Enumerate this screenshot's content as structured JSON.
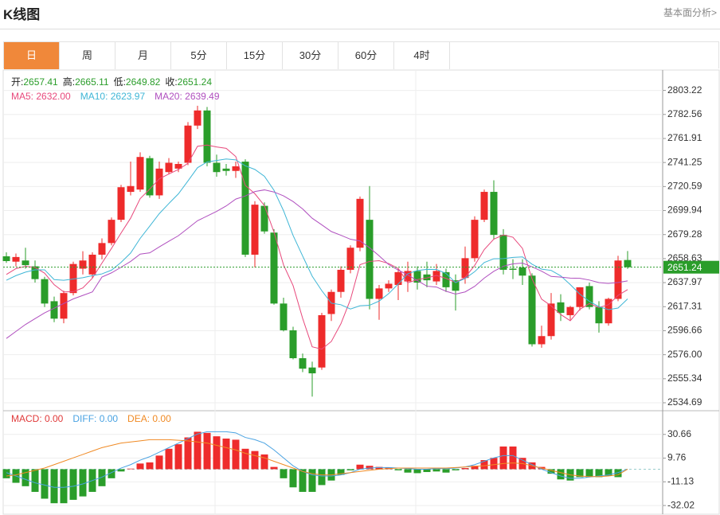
{
  "header": {
    "title": "K线图",
    "link": "基本面分析>"
  },
  "tabs": [
    "日",
    "周",
    "月",
    "5分",
    "15分",
    "30分",
    "60分",
    "4时"
  ],
  "active_tab": 0,
  "chart_data": [
    {
      "type": "candlestick",
      "up_color": "#ee2b2b",
      "down_color": "#2a9d2a",
      "grid": true,
      "info": [
        {
          "label": "开:",
          "value": "2657.41"
        },
        {
          "label": "高:",
          "value": "2665.11"
        },
        {
          "label": "低:",
          "value": "2649.82"
        },
        {
          "label": "收:",
          "value": "2651.24"
        }
      ],
      "ylim": [
        2528.53,
        2820.74
      ],
      "yticks": [
        2534.69,
        2555.34,
        {
          "value": 2576.0,
          "label": "2576.00"
        },
        2596.66,
        2617.31,
        2637.97,
        2658.63,
        2679.28,
        2699.94,
        2720.59,
        2741.25,
        2761.91,
        2782.56,
        2803.22
      ],
      "open": [
        2660.6,
        2656,
        2657,
        2652,
        2641,
        2622,
        2607,
        2629,
        2650,
        2645,
        2662,
        2672,
        2692,
        2716,
        2718,
        2745,
        2713,
        2733,
        2736,
        2741,
        2773,
        2786,
        2741,
        2736,
        2734,
        2742,
        2662,
        2704,
        2681,
        2620,
        2597,
        2573,
        2565,
        2565,
        2611,
        2630,
        2649,
        2668,
        2692,
        2624,
        2633,
        2636,
        2639,
        2648,
        2645,
        2639,
        2647,
        2640,
        2642,
        2659,
        2692,
        2716,
        2679,
        2650,
        2651,
        2644,
        2585,
        2592,
        2621,
        2610,
        2617,
        2635,
        2617,
        2603,
        2624,
        2657.41
      ],
      "high": [
        2664,
        2663,
        2668,
        2657,
        2643,
        2626,
        2631,
        2656,
        2665,
        2664,
        2676,
        2694,
        2722,
        2742,
        2750,
        2747,
        2742,
        2745,
        2742,
        2776,
        2790,
        2789,
        2748,
        2740,
        2742,
        2744,
        2708,
        2707,
        2684,
        2625,
        2600,
        2577,
        2570,
        2612,
        2632,
        2652,
        2670,
        2712,
        2721,
        2636,
        2640,
        2650,
        2656,
        2652,
        2656,
        2654,
        2650,
        2645,
        2669,
        2695,
        2718,
        2726,
        2684,
        2658,
        2658,
        2646,
        2601,
        2629,
        2628,
        2618,
        2634,
        2638,
        2622,
        2625,
        2661,
        2665.11
      ],
      "low": [
        2655,
        2652,
        2650,
        2638,
        2617,
        2604,
        2603,
        2627,
        2645,
        2642,
        2658,
        2670,
        2690,
        2713,
        2716,
        2711,
        2710,
        2731,
        2733,
        2739,
        2770,
        2738,
        2729,
        2730,
        2728,
        2660,
        2651,
        2680,
        2619,
        2596,
        2572,
        2561,
        2540,
        2563,
        2605,
        2625,
        2646,
        2665,
        2615,
        2606,
        2630,
        2623,
        2630,
        2632,
        2634,
        2636,
        2630,
        2614,
        2637,
        2656,
        2690,
        2675,
        2645,
        2641,
        2636,
        2583,
        2582,
        2589,
        2605,
        2606,
        2614,
        2615,
        2595,
        2601,
        2622,
        2649.82
      ],
      "close": [
        2656.5,
        2660,
        2653,
        2641,
        2620,
        2607,
        2629,
        2654,
        2657,
        2662,
        2672,
        2692,
        2720,
        2721,
        2746,
        2713,
        2736,
        2741,
        2740,
        2773,
        2786,
        2741,
        2733,
        2734,
        2738,
        2662,
        2705,
        2682,
        2620,
        2597,
        2573,
        2564,
        2560,
        2610,
        2630,
        2649,
        2668,
        2710,
        2624,
        2633,
        2637,
        2647,
        2648,
        2638,
        2640,
        2648,
        2634,
        2631,
        2659,
        2692,
        2716,
        2679,
        2649,
        2649,
        2644,
        2585,
        2592,
        2620,
        2612,
        2617,
        2634,
        2617,
        2603,
        2624,
        2657,
        2651.24
      ],
      "series": [
        {
          "name": "MA5: 2632.00",
          "color": "#e8497c",
          "values": [
            2645,
            2650,
            2652,
            2651,
            2646.1,
            2636.2,
            2630,
            2630.2,
            2633.4,
            2641.8,
            2654.8,
            2667.4,
            2680.6,
            2693.4,
            2710.2,
            2718.4,
            2727.2,
            2731.4,
            2735.2,
            2740.6,
            2755.2,
            2756.2,
            2754.6,
            2753.4,
            2746.4,
            2721.6,
            2714.4,
            2704.2,
            2681.4,
            2653.2,
            2635.4,
            2607.2,
            2582.8,
            2580.8,
            2587.4,
            2602.6,
            2623.4,
            2653.4,
            2656.2,
            2656.8,
            2654.4,
            2650.2,
            2637.8,
            2640.6,
            2642,
            2644.2,
            2641.6,
            2638.2,
            2642.4,
            2652.8,
            2666.4,
            2675.4,
            2679,
            2677,
            2667.4,
            2641.2,
            2623.8,
            2618,
            2610.6,
            2605.2,
            2615,
            2620,
            2616.6,
            2619,
            2627,
            2632.0
          ]
        },
        {
          "name": "MA10: 2623.97",
          "color": "#3fb6d6",
          "values": [
            2640,
            2644,
            2647,
            2649,
            2649,
            2640.6,
            2640,
            2641.1,
            2642.2,
            2644,
            2645.5,
            2648.7,
            2655.4,
            2663.4,
            2676,
            2686.6,
            2697.3,
            2706,
            2714.3,
            2725.4,
            2736.8,
            2741.7,
            2743,
            2744.3,
            2743.5,
            2738.4,
            2735.3,
            2729.4,
            2717.4,
            2699.8,
            2678.5,
            2660.8,
            2643.5,
            2631.1,
            2620.3,
            2619,
            2615.3,
            2618.1,
            2618.5,
            2622.1,
            2628.5,
            2636.8,
            2645.6,
            2648.4,
            2649.4,
            2649.3,
            2645.9,
            2638,
            2641.5,
            2647.4,
            2655.3,
            2658.5,
            2658.6,
            2659.7,
            2660.1,
            2653.8,
            2649.6,
            2648.5,
            2643.8,
            2636.3,
            2628.1,
            2621.9,
            2617.3,
            2614.8,
            2616.1,
            2623.97
          ]
        },
        {
          "name": "MA20: 2639.49",
          "color": "#b04fbf",
          "values": [
            2590,
            2596,
            2602,
            2607,
            2612,
            2616,
            2620,
            2624,
            2627,
            2630,
            2642.8,
            2646.4,
            2651.2,
            2656.2,
            2662.5,
            2663.6,
            2668.7,
            2673.6,
            2678.3,
            2684.7,
            2691.2,
            2695.2,
            2699.2,
            2703.9,
            2709.8,
            2712.5,
            2716.3,
            2717.7,
            2715.9,
            2712.6,
            2707.7,
            2701.3,
            2693.3,
            2687.7,
            2681.9,
            2678.7,
            2675.3,
            2673.8,
            2668,
            2661,
            2653.5,
            2648.8,
            2644.6,
            2639.8,
            2634.9,
            2634.2,
            2630.6,
            2628.1,
            2630,
            2634.8,
            2641.9,
            2647.7,
            2652.1,
            2654.1,
            2654.8,
            2651.6,
            2647.8,
            2643.3,
            2642.7,
            2641.9,
            2641.7,
            2640.2,
            2638,
            2637.3,
            2638.1,
            2639.49
          ]
        }
      ]
    },
    {
      "type": "macd",
      "up_color": "#ee2b2b",
      "down_color": "#2a9d2a",
      "grid": true,
      "ylim": [
        -39.68,
        50.84
      ],
      "yticks": [
        -32.02,
        -11.13,
        9.76,
        30.66
      ],
      "series": [
        {
          "name": "MACD: 0.00",
          "color": "#e03a3a",
          "kind": "bar",
          "values": [
            -8,
            -12,
            -15,
            -20,
            -26,
            -30,
            -30,
            -27,
            -24,
            -20,
            -15,
            -8,
            -2,
            0.5,
            5,
            6,
            12,
            18,
            22,
            28,
            33,
            32,
            29,
            27,
            26,
            18,
            16,
            13,
            2,
            -8,
            -16,
            -20,
            -20,
            -14,
            -10,
            -5,
            -1,
            4,
            3,
            2,
            1.5,
            -1,
            -3,
            -3.5,
            -2.5,
            -2,
            -3,
            -1,
            1,
            3,
            8,
            10,
            20,
            20,
            10,
            6,
            2,
            -4,
            -9,
            -10,
            -7,
            -7,
            -7,
            -6,
            -7,
            0
          ]
        },
        {
          "name": "DIFF: 0.00",
          "color": "#4aa3e2",
          "kind": "line",
          "values": [
            -3,
            -6,
            -9,
            -12,
            -14,
            -16,
            -16,
            -15,
            -13,
            -10,
            -7,
            -3,
            1,
            4,
            8,
            11,
            15,
            19,
            23,
            27,
            31,
            33,
            33,
            33,
            32,
            28,
            26,
            23,
            17,
            10,
            3,
            -2,
            -5,
            -6,
            -6,
            -5,
            -3,
            0,
            1,
            1.5,
            1.5,
            1,
            0.5,
            0,
            0,
            0.5,
            0.5,
            1,
            2,
            4,
            7,
            10,
            12,
            12,
            8,
            4,
            0,
            -3,
            -6,
            -8,
            -8,
            -7,
            -6,
            -5,
            -3,
            0
          ]
        },
        {
          "name": "DEA: 0.00",
          "color": "#f08a24",
          "kind": "line",
          "values": [
            -6,
            -5,
            -3,
            -1,
            1,
            4,
            7,
            10,
            13,
            16,
            19,
            21,
            23,
            24,
            25,
            26,
            26,
            26,
            25.5,
            25,
            24,
            23,
            21,
            19,
            17,
            14,
            12,
            10,
            7,
            4,
            1,
            -2,
            -4,
            -5,
            -5,
            -4,
            -3,
            -2,
            -1,
            0,
            0.5,
            1,
            1,
            1,
            1,
            1,
            1,
            1.5,
            2,
            2.5,
            3,
            4,
            5,
            5.5,
            5,
            3,
            1,
            -1,
            -3,
            -5,
            -6,
            -6.5,
            -6.5,
            -6,
            -5,
            0
          ]
        }
      ]
    }
  ]
}
